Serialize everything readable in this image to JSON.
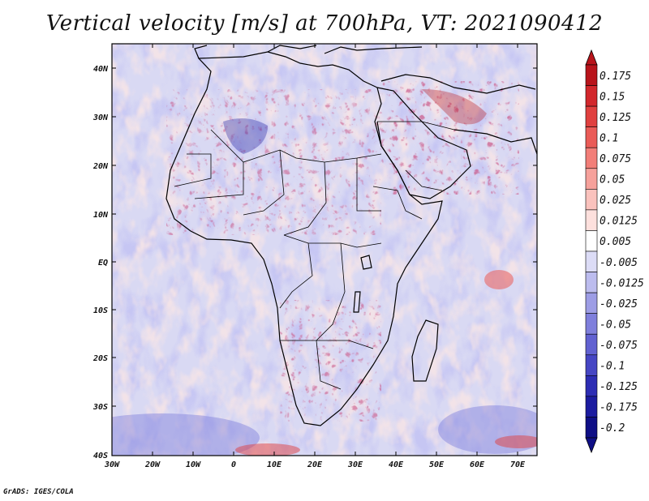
{
  "title": "Vertical velocity [m/s] at 700hPa, VT: 2021090412",
  "credit": "GrADS: IGES/COLA",
  "lat_labels": [
    "40N",
    "30N",
    "20N",
    "10N",
    "EQ",
    "10S",
    "20S",
    "30S",
    "40S"
  ],
  "lon_labels": [
    "30W",
    "20W",
    "10W",
    "0",
    "10E",
    "20E",
    "30E",
    "40E",
    "50E",
    "60E",
    "70E"
  ],
  "colorbar": {
    "labels": [
      "0.175",
      "0.15",
      "0.125",
      "0.1",
      "0.075",
      "0.05",
      "0.025",
      "0.0125",
      "0.005",
      "-0.005",
      "-0.0125",
      "-0.025",
      "-0.05",
      "-0.075",
      "-0.1",
      "-0.125",
      "-0.175",
      "-0.2"
    ],
    "colors": [
      "#b8141b",
      "#d2272c",
      "#e0403f",
      "#ea5b57",
      "#f27e78",
      "#f6a19b",
      "#fac2bd",
      "#fde0dd",
      "#ffffff",
      "#dcdcf6",
      "#bcbcee",
      "#9d9de5",
      "#7f7fdc",
      "#6161d1",
      "#4646c4",
      "#2d2db4",
      "#1c1ca0",
      "#0f0f86"
    ]
  }
}
